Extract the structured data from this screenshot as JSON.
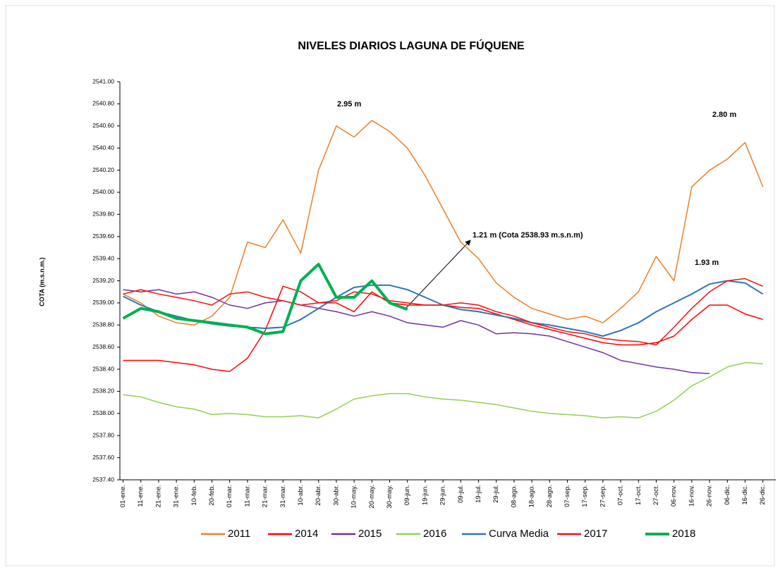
{
  "chart_data": {
    "type": "line",
    "title": "NIVELES DIARIOS LAGUNA DE FÚQUENE",
    "y_label": "COTA (m.s.n.m.)",
    "categories": [
      "01-ene.",
      "11-ene.",
      "21-ene.",
      "31-ene.",
      "10-feb.",
      "20-feb.",
      "01-mar.",
      "11-mar.",
      "21-mar.",
      "31-mar.",
      "10-abr.",
      "20-abr.",
      "30-abr.",
      "10-may.",
      "20-may.",
      "30-may.",
      "09-jun.",
      "19-jun.",
      "29-jun.",
      "09-jul.",
      "19-jul.",
      "29-jul.",
      "08-ago.",
      "18-ago.",
      "28-ago.",
      "07-sep.",
      "17-sep.",
      "27-sep.",
      "07-oct.",
      "17-oct.",
      "27-oct.",
      "06-nov.",
      "16-nov.",
      "26-nov.",
      "06-dic.",
      "16-dic.",
      "26-dic."
    ],
    "ylim": [
      2537.4,
      2541.0
    ],
    "yticks": [
      {
        "value": 2537.4,
        "label": "2537.40"
      },
      {
        "value": 2537.6,
        "label": "2537.60"
      },
      {
        "value": 2537.8,
        "label": "2537.80"
      },
      {
        "value": 2538.0,
        "label": "2538.00"
      },
      {
        "value": 2538.2,
        "label": "2538.20"
      },
      {
        "value": 2538.4,
        "label": "2538.40"
      },
      {
        "value": 2538.6,
        "label": "2538.60"
      },
      {
        "value": 2538.8,
        "label": "2538.80"
      },
      {
        "value": 2539.0,
        "label": "2539.00"
      },
      {
        "value": 2539.2,
        "label": "2539.20"
      },
      {
        "value": 2539.4,
        "label": "2539.40"
      },
      {
        "value": 2539.6,
        "label": "2539.60"
      },
      {
        "value": 2539.8,
        "label": "2539.80"
      },
      {
        "value": 2540.0,
        "label": "2540.00"
      },
      {
        "value": 2540.2,
        "label": "2540.20"
      },
      {
        "value": 2540.4,
        "label": "2540.40"
      },
      {
        "value": 2540.6,
        "label": "2540.60"
      },
      {
        "value": 2540.8,
        "label": "2540.80"
      },
      {
        "value": 2541.0,
        "label": "2541.00"
      }
    ],
    "grid": false,
    "series": [
      {
        "name": "2011",
        "color": "#e8802a",
        "width": 1.5,
        "values": [
          2539.08,
          2539.0,
          2538.88,
          2538.82,
          2538.8,
          2538.88,
          2539.05,
          2539.55,
          2539.5,
          2539.75,
          2539.45,
          2540.2,
          2540.6,
          2540.5,
          2540.65,
          2540.55,
          2540.4,
          2540.15,
          2539.85,
          2539.55,
          2539.4,
          2539.18,
          2539.05,
          2538.95,
          2538.9,
          2538.85,
          2538.88,
          2538.82,
          2538.95,
          2539.1,
          2539.42,
          2539.2,
          2540.05,
          2540.2,
          2540.3,
          2540.45,
          2540.05
        ]
      },
      {
        "name": "2014",
        "color": "#ff0000",
        "width": 1.5,
        "values": [
          2538.48,
          2538.48,
          2538.48,
          2538.46,
          2538.44,
          2538.4,
          2538.38,
          2538.5,
          2538.75,
          2539.15,
          2539.1,
          2539.0,
          2539.0,
          2538.92,
          2539.1,
          2539.0,
          2538.98,
          2538.98,
          2538.98,
          2538.96,
          2538.95,
          2538.9,
          2538.85,
          2538.8,
          2538.76,
          2538.72,
          2538.68,
          2538.64,
          2538.62,
          2538.62,
          2538.64,
          2538.7,
          2538.85,
          2538.98,
          2538.98,
          2538.9,
          2538.85
        ]
      },
      {
        "name": "2015",
        "color": "#7030a0",
        "width": 1.5,
        "values": [
          2539.12,
          2539.1,
          2539.12,
          2539.08,
          2539.1,
          2539.05,
          2538.98,
          2538.95,
          2539.0,
          2539.02,
          2538.98,
          2538.95,
          2538.92,
          2538.88,
          2538.92,
          2538.88,
          2538.82,
          2538.8,
          2538.78,
          2538.84,
          2538.8,
          2538.72,
          2538.73,
          2538.72,
          2538.7,
          2538.65,
          2538.6,
          2538.55,
          2538.48,
          2538.45,
          2538.42,
          2538.4,
          2538.37,
          2538.36,
          null,
          null,
          null
        ]
      },
      {
        "name": "2016",
        "color": "#92d050",
        "width": 1.5,
        "values": [
          2538.17,
          2538.15,
          2538.1,
          2538.06,
          2538.04,
          2537.99,
          2538.0,
          2537.99,
          2537.97,
          2537.97,
          2537.98,
          2537.96,
          2538.04,
          2538.13,
          2538.16,
          2538.18,
          2538.18,
          2538.15,
          2538.13,
          2538.12,
          2538.1,
          2538.08,
          2538.05,
          2538.02,
          2538.0,
          2537.99,
          2537.98,
          2537.96,
          2537.97,
          2537.96,
          2538.02,
          2538.12,
          2538.25,
          2538.33,
          2538.42,
          2538.46,
          2538.45
        ]
      },
      {
        "name": "Curva Media",
        "color": "#2e75b6",
        "width": 2,
        "values": [
          2539.06,
          2538.98,
          2538.92,
          2538.88,
          2538.84,
          2538.81,
          2538.79,
          2538.78,
          2538.77,
          2538.78,
          2538.85,
          2538.95,
          2539.05,
          2539.14,
          2539.16,
          2539.16,
          2539.12,
          2539.05,
          2538.98,
          2538.94,
          2538.92,
          2538.89,
          2538.86,
          2538.82,
          2538.8,
          2538.77,
          2538.74,
          2538.7,
          2538.75,
          2538.82,
          2538.92,
          2539.0,
          2539.08,
          2539.17,
          2539.2,
          2539.18,
          2539.08
        ]
      },
      {
        "name": "2017",
        "color": "#ee1111",
        "width": 1.5,
        "values": [
          2539.08,
          2539.12,
          2539.08,
          2539.05,
          2539.02,
          2538.98,
          2539.08,
          2539.1,
          2539.05,
          2539.02,
          2538.98,
          2539.0,
          2539.02,
          2539.1,
          2539.08,
          2539.02,
          2539.0,
          2538.98,
          2538.98,
          2539.0,
          2538.98,
          2538.92,
          2538.88,
          2538.82,
          2538.78,
          2538.74,
          2538.72,
          2538.68,
          2538.66,
          2538.65,
          2538.62,
          2538.78,
          2538.95,
          2539.1,
          2539.2,
          2539.22,
          2539.15
        ]
      },
      {
        "name": "2018",
        "color": "#00b050",
        "width": 4,
        "values": [
          2538.86,
          2538.95,
          2538.92,
          2538.86,
          2538.84,
          2538.82,
          2538.8,
          2538.78,
          2538.72,
          2538.74,
          2539.2,
          2539.35,
          2539.05,
          2539.05,
          2539.2,
          2539.0,
          2538.94,
          null,
          null,
          null,
          null,
          null,
          null,
          null,
          null,
          null,
          null,
          null,
          null,
          null,
          null,
          null,
          null,
          null,
          null,
          null,
          null
        ]
      }
    ],
    "annotations": [
      "2.95 m",
      "2.80 m",
      "1.21 m (Cota 2538.93 m.s.n.m)",
      "1.93 m"
    ],
    "legend": "bottom"
  }
}
